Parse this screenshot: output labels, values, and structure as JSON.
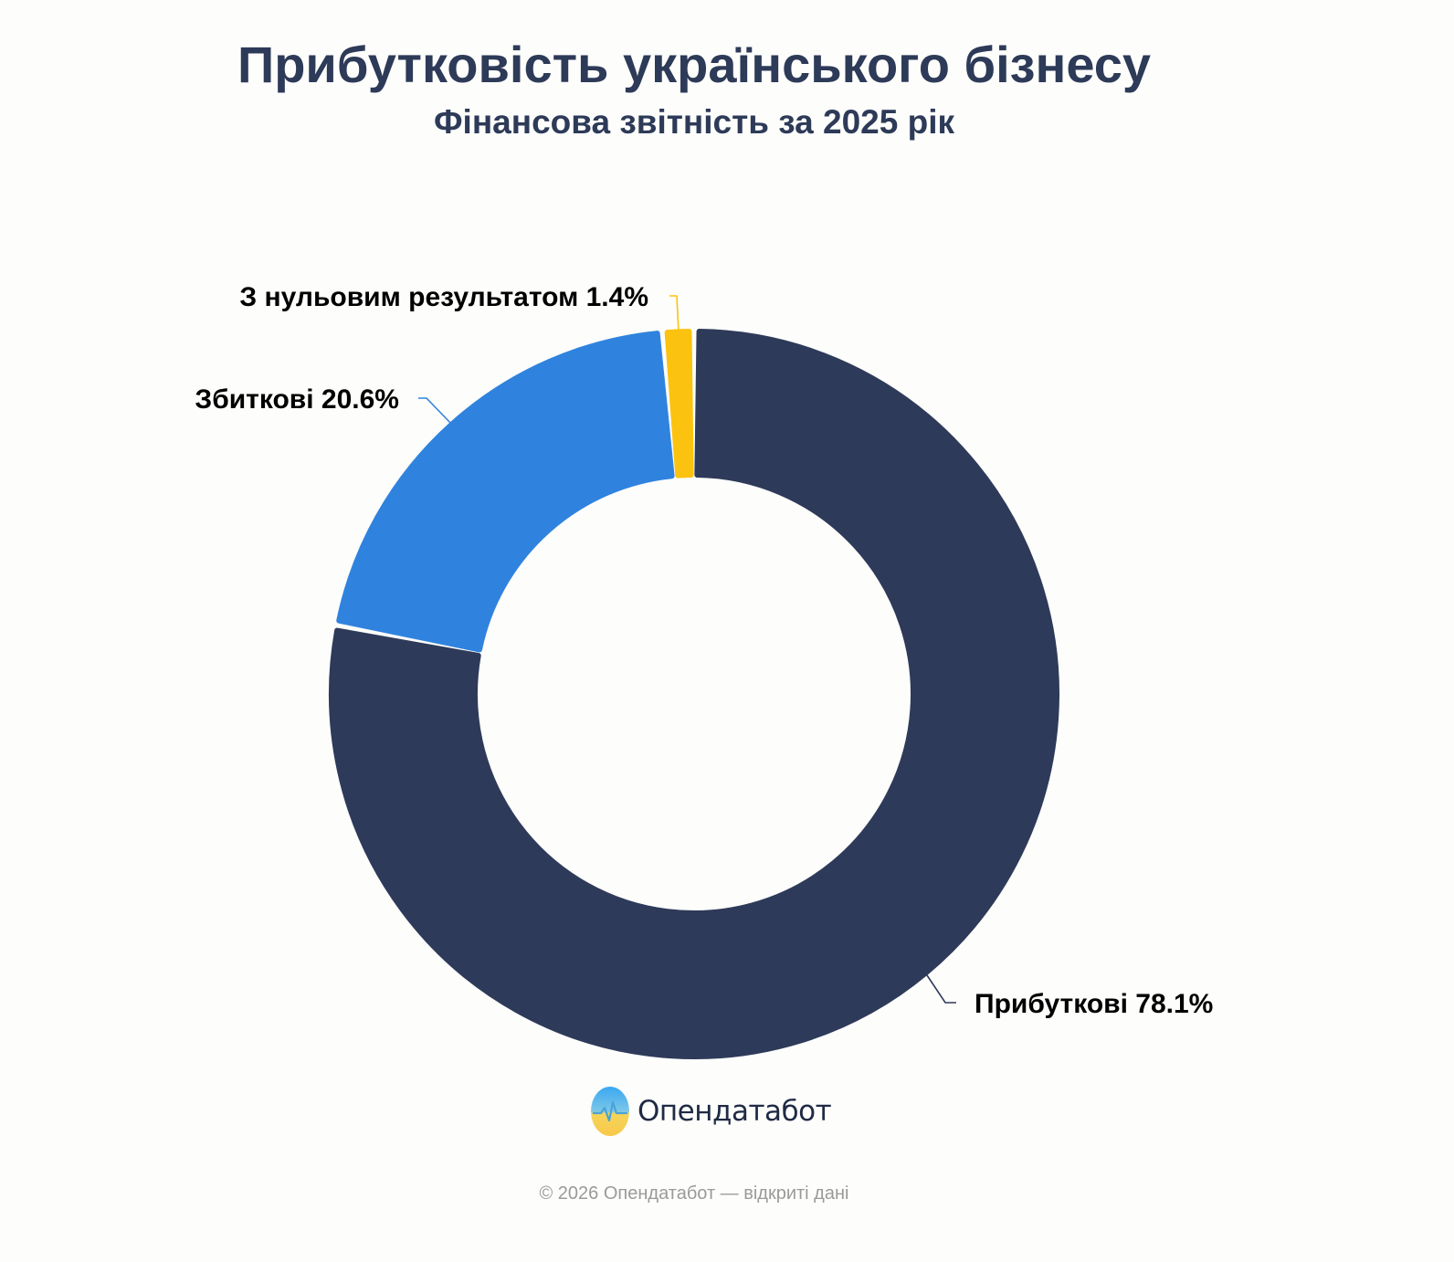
{
  "chart_data": {
    "type": "pie",
    "donut": true,
    "title": "Прибутковість українського бізнесу",
    "subtitle": "Фінансова звітність за 2025 рік",
    "categories": [
      "Прибуткові",
      "Збиткові",
      "З нульовим результатом"
    ],
    "values": [
      78.1,
      20.6,
      1.4
    ],
    "labels": [
      "Прибуткові 78.1%",
      "Збиткові 20.6%",
      "З нульовим результатом 1.4%"
    ],
    "colors": [
      "#2e3a59",
      "#2f83de",
      "#fbc30f"
    ],
    "unit": "%"
  },
  "brand": {
    "name": "Опендатабот",
    "logo_icon": "opendatabot-logo-icon"
  },
  "footer": {
    "text": "© 2026 Опендатабот — відкриті дані"
  }
}
